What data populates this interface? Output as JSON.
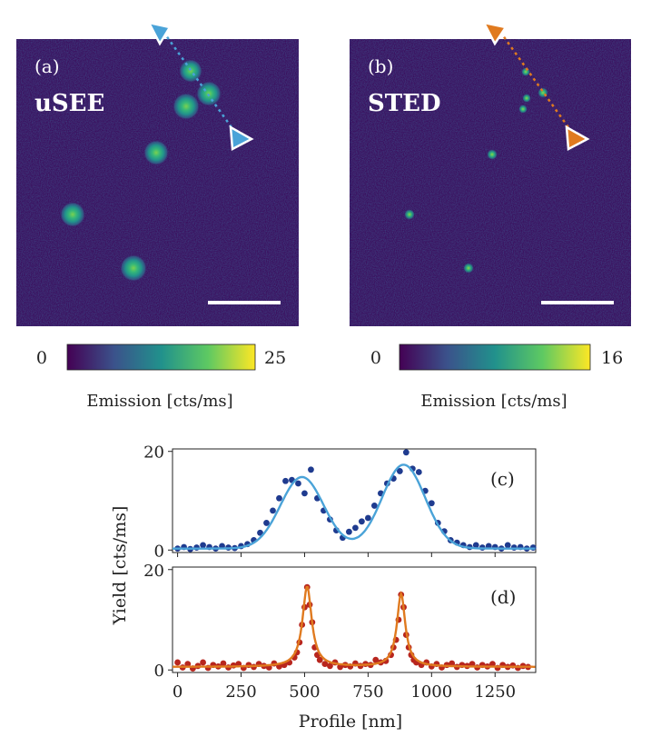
{
  "panels": {
    "a": {
      "tag": "(a)",
      "method": "uSEE",
      "cbar_min": "0",
      "cbar_max": "25",
      "cbar_label": "Emission [cts/ms]",
      "cbar_max_value": 25
    },
    "b": {
      "tag": "(b)",
      "method": "STED",
      "cbar_min": "0",
      "cbar_max": "16",
      "cbar_label": "Emission [cts/ms]",
      "cbar_max_value": 16
    }
  },
  "colors": {
    "background": "#3b0f5e",
    "usee_line": "#4aa3d8",
    "usee_points": "#1f3b8f",
    "sted_line": "#e07a1f",
    "sted_points": "#b8261e",
    "scalebar": "#ffffff"
  },
  "viridis_stops": [
    "#440154",
    "#3b528b",
    "#21918c",
    "#5ec962",
    "#fde725"
  ],
  "profile_plot": {
    "xlabel": "Profile [nm]",
    "ylabel": "Yield [cts/ms]",
    "xticks": [
      "0",
      "250",
      "500",
      "750",
      "1000",
      "1250"
    ],
    "yticks_c": [
      "0",
      "20"
    ],
    "yticks_d": [
      "0",
      "20"
    ],
    "label_c": "(c)",
    "label_d": "(d)"
  },
  "chart_data": [
    {
      "type": "scatter",
      "panel": "c",
      "xlim": [
        -20,
        1410
      ],
      "ylim": [
        -0.5,
        20.5
      ],
      "fit": {
        "peaks": [
          {
            "center": 490,
            "amp": 14.5,
            "sigma": 85
          },
          {
            "center": 890,
            "amp": 17.0,
            "sigma": 85
          }
        ],
        "baseline": 0.3
      },
      "series": [
        {
          "x": [
            0,
            25,
            50,
            75,
            100,
            125,
            150,
            175,
            200,
            225,
            250,
            275,
            300,
            325,
            350,
            375,
            400,
            425,
            450,
            475,
            500,
            525,
            550,
            575,
            600,
            625,
            650,
            675,
            700,
            725,
            750,
            775,
            800,
            825,
            850,
            875,
            900,
            925,
            950,
            975,
            1000,
            1025,
            1050,
            1075,
            1100,
            1125,
            1150,
            1175,
            1200,
            1225,
            1250,
            1275,
            1300,
            1325,
            1350,
            1375,
            1400
          ],
          "y": [
            0.3,
            0.6,
            0.2,
            0.5,
            1.0,
            0.6,
            0.3,
            0.8,
            0.5,
            0.4,
            0.8,
            1.2,
            2.0,
            3.5,
            5.5,
            8.0,
            10.5,
            14.0,
            14.2,
            13.5,
            11.5,
            16.3,
            10.5,
            8.0,
            6.2,
            4.0,
            2.5,
            3.7,
            4.5,
            5.8,
            6.5,
            9.0,
            11.5,
            13.5,
            14.5,
            16.0,
            19.8,
            16.5,
            15.8,
            12.0,
            9.5,
            5.5,
            3.8,
            2.0,
            1.5,
            1.0,
            0.6,
            1.0,
            0.5,
            0.8,
            0.6,
            0.3,
            1.0,
            0.5,
            0.6,
            0.3,
            0.5
          ]
        }
      ]
    },
    {
      "type": "scatter",
      "panel": "d",
      "xlim": [
        -20,
        1410
      ],
      "ylim": [
        -0.5,
        20.5
      ],
      "fit": {
        "peaks": [
          {
            "center": 510,
            "amp": 16.0,
            "gamma": 22
          },
          {
            "center": 880,
            "amp": 14.5,
            "gamma": 20
          }
        ],
        "baseline": 0.6
      },
      "series": [
        {
          "x": [
            0,
            20,
            40,
            60,
            80,
            100,
            120,
            140,
            160,
            180,
            200,
            220,
            240,
            260,
            280,
            300,
            320,
            340,
            360,
            380,
            400,
            420,
            440,
            460,
            470,
            480,
            490,
            500,
            510,
            520,
            530,
            540,
            550,
            560,
            580,
            600,
            620,
            640,
            660,
            680,
            700,
            720,
            740,
            760,
            780,
            800,
            820,
            840,
            850,
            860,
            870,
            880,
            890,
            900,
            910,
            920,
            930,
            940,
            960,
            980,
            1000,
            1020,
            1040,
            1060,
            1080,
            1100,
            1120,
            1140,
            1160,
            1180,
            1200,
            1220,
            1240,
            1260,
            1280,
            1300,
            1320,
            1340,
            1360,
            1380
          ],
          "y": [
            1.5,
            0.5,
            1.2,
            0.3,
            0.8,
            1.5,
            0.4,
            1.0,
            0.7,
            1.3,
            0.5,
            0.9,
            1.2,
            0.4,
            1.0,
            0.6,
            1.2,
            0.8,
            0.5,
            1.3,
            0.7,
            1.0,
            1.5,
            2.5,
            3.5,
            5.5,
            9.0,
            12.5,
            16.5,
            13.0,
            9.5,
            4.5,
            3.0,
            2.0,
            1.2,
            0.8,
            1.5,
            0.6,
            1.0,
            0.7,
            1.3,
            0.8,
            1.2,
            1.0,
            2.0,
            1.5,
            1.8,
            3.0,
            4.5,
            6.0,
            10.0,
            15.0,
            12.5,
            7.0,
            4.5,
            3.0,
            2.0,
            1.5,
            1.0,
            1.5,
            0.7,
            1.2,
            0.5,
            1.0,
            1.3,
            0.6,
            1.0,
            0.8,
            1.2,
            0.5,
            1.0,
            0.7,
            1.2,
            0.4,
            1.0,
            0.6,
            0.9,
            0.4,
            0.8,
            0.6
          ]
        }
      ]
    }
  ]
}
